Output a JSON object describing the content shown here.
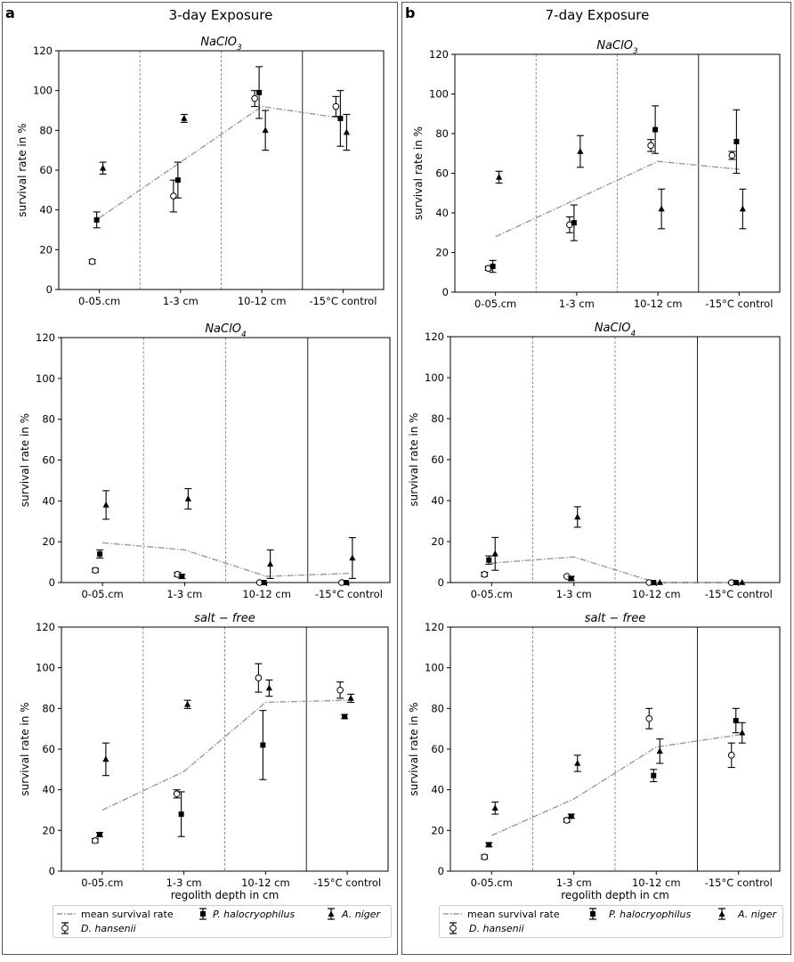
{
  "panels": [
    {
      "letter": "a",
      "title": "3-day Exposure"
    },
    {
      "letter": "b",
      "title": "7-day Exposure"
    }
  ],
  "axis": {
    "xlabel": "regolith depth in cm",
    "ylabel": "survival rate in %",
    "categories": [
      "0-05.cm",
      "1-3 cm",
      "10-12 cm",
      "-15°C control"
    ],
    "ylim": [
      0,
      120
    ],
    "yticks": [
      0,
      20,
      40,
      60,
      80,
      100,
      120
    ]
  },
  "legend": {
    "mean": "mean survival rate",
    "D. hansenii": "D. hansenii",
    "P. halocryophilus": "P. halocryophilus",
    "A. niger": "A. niger"
  },
  "chart_data": [
    {
      "panel": "a",
      "type": "scatter",
      "title": "NaClO3",
      "categories": [
        "0-05.cm",
        "1-3 cm",
        "10-12 cm",
        "-15°C control"
      ],
      "ylim": [
        0,
        120
      ],
      "xlabel": "",
      "ylabel": "survival rate in %",
      "mean": [
        36,
        64,
        92,
        86
      ],
      "series": [
        {
          "name": "D. hansenii",
          "values": [
            14,
            47,
            96,
            92
          ],
          "err": [
            1,
            8,
            4,
            5
          ]
        },
        {
          "name": "P. halocryophilus",
          "values": [
            35,
            55,
            99,
            86
          ],
          "err": [
            4,
            9,
            13,
            14
          ]
        },
        {
          "name": "A. niger",
          "values": [
            61,
            86,
            80,
            79
          ],
          "err": [
            3,
            2,
            10,
            9
          ]
        }
      ]
    },
    {
      "panel": "b",
      "type": "scatter",
      "title": "NaClO3",
      "categories": [
        "0-05.cm",
        "1-3 cm",
        "10-12 cm",
        "-15°C control"
      ],
      "ylim": [
        0,
        120
      ],
      "xlabel": "",
      "ylabel": "survival rate in %",
      "mean": [
        28,
        47,
        66,
        62
      ],
      "series": [
        {
          "name": "D. hansenii",
          "values": [
            12,
            34,
            74,
            69
          ],
          "err": [
            1,
            4,
            3,
            2
          ]
        },
        {
          "name": "P. halocryophilus",
          "values": [
            13,
            35,
            82,
            76
          ],
          "err": [
            3,
            9,
            12,
            16
          ]
        },
        {
          "name": "A. niger",
          "values": [
            58,
            71,
            42,
            42
          ],
          "err": [
            3,
            8,
            10,
            10
          ]
        }
      ]
    },
    {
      "panel": "a",
      "type": "scatter",
      "title": "NaClO4",
      "categories": [
        "0-05.cm",
        "1-3 cm",
        "10-12 cm",
        "-15°C control"
      ],
      "ylim": [
        0,
        120
      ],
      "xlabel": "",
      "ylabel": "survival rate in %",
      "mean": [
        19.5,
        16,
        3,
        4.5
      ],
      "series": [
        {
          "name": "D. hansenii",
          "values": [
            6,
            4,
            0,
            0
          ],
          "err": [
            1,
            1,
            0,
            0
          ]
        },
        {
          "name": "P. halocryophilus",
          "values": [
            14,
            3,
            0,
            0
          ],
          "err": [
            2,
            1,
            0,
            0
          ]
        },
        {
          "name": "A. niger",
          "values": [
            38,
            41,
            9,
            12
          ],
          "err": [
            7,
            5,
            7,
            10
          ]
        }
      ]
    },
    {
      "panel": "b",
      "type": "scatter",
      "title": "NaClO4",
      "categories": [
        "0-05.cm",
        "1-3 cm",
        "10-12 cm",
        "-15°C control"
      ],
      "ylim": [
        0,
        120
      ],
      "xlabel": "",
      "ylabel": "survival rate in %",
      "mean": [
        9.5,
        12.5,
        0,
        0
      ],
      "series": [
        {
          "name": "D. hansenii",
          "values": [
            4,
            3,
            0,
            0
          ],
          "err": [
            1,
            0,
            0,
            0
          ]
        },
        {
          "name": "P. halocryophilus",
          "values": [
            11,
            2,
            0,
            0
          ],
          "err": [
            2,
            1,
            0,
            0
          ]
        },
        {
          "name": "A. niger",
          "values": [
            14,
            32,
            0,
            0
          ],
          "err": [
            8,
            5,
            0,
            0
          ]
        }
      ]
    },
    {
      "panel": "a",
      "type": "scatter",
      "title": "salt − free",
      "categories": [
        "0-05.cm",
        "1-3 cm",
        "10-12 cm",
        "-15°C control"
      ],
      "ylim": [
        0,
        120
      ],
      "xlabel": "regolith depth in cm",
      "ylabel": "survival rate in %",
      "mean": [
        30,
        49,
        83,
        84
      ],
      "series": [
        {
          "name": "D. hansenii",
          "values": [
            15,
            38,
            95,
            89
          ],
          "err": [
            1,
            2,
            7,
            4
          ]
        },
        {
          "name": "P. halocryophilus",
          "values": [
            18,
            28,
            62,
            76
          ],
          "err": [
            1,
            11,
            17,
            1
          ]
        },
        {
          "name": "A. niger",
          "values": [
            55,
            82,
            90,
            85
          ],
          "err": [
            8,
            2,
            4,
            2
          ]
        }
      ]
    },
    {
      "panel": "b",
      "type": "scatter",
      "title": "salt − free",
      "categories": [
        "0-05.cm",
        "1-3 cm",
        "10-12 cm",
        "-15°C control"
      ],
      "ylim": [
        0,
        120
      ],
      "xlabel": "regolith depth in cm",
      "ylabel": "survival rate in %",
      "mean": [
        17.5,
        35.5,
        61,
        67
      ],
      "series": [
        {
          "name": "D. hansenii",
          "values": [
            7,
            25,
            75,
            57
          ],
          "err": [
            1,
            1,
            5,
            6
          ]
        },
        {
          "name": "P. halocryophilus",
          "values": [
            13,
            27,
            47,
            74
          ],
          "err": [
            1,
            1,
            3,
            6
          ]
        },
        {
          "name": "A. niger",
          "values": [
            31,
            53,
            59,
            68
          ],
          "err": [
            3,
            4,
            6,
            5
          ]
        }
      ]
    }
  ]
}
